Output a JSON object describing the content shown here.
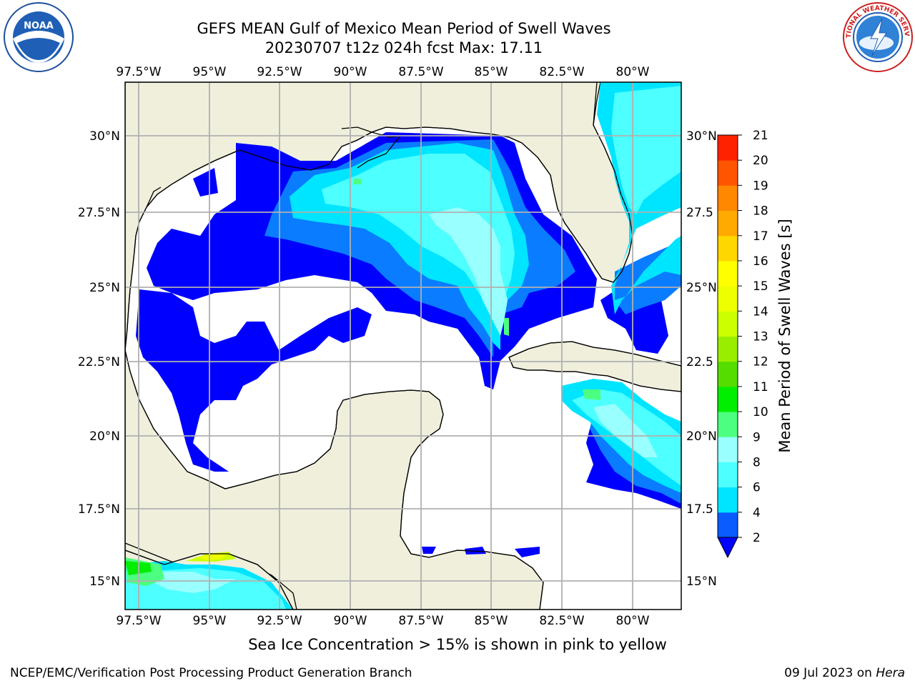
{
  "header": {
    "title_line1": "GEFS MEAN Gulf of Mexico Mean Period of Swell Waves",
    "title_line2": "20230707 t12z 024h fcst   Max: 17.11"
  },
  "logos": {
    "left": "noaa-logo",
    "right": "national-weather-service-logo"
  },
  "map": {
    "lon_labels": [
      "97.5°W",
      "95°W",
      "92.5°W",
      "90°W",
      "87.5°W",
      "85°W",
      "82.5°W",
      "80°W"
    ],
    "lat_labels_left": [
      "30°N",
      "27.5°N",
      "25°N",
      "22.5°N",
      "20°N",
      "17.5°N",
      "15°N"
    ],
    "lat_labels_right": [
      "30°N",
      "27.5",
      "25°N",
      "22.5",
      "20°N",
      "17.5",
      "15°N"
    ],
    "colors": {
      "land": "#efefdc",
      "ocean_blank": "#ffffff",
      "gridline": "#b0b0b0",
      "coast": "#000000"
    }
  },
  "colorbar": {
    "title": "Mean Period of Swell Waves [s]",
    "tick_labels": [
      "2",
      "4",
      "6",
      "8",
      "9",
      "10",
      "11",
      "12",
      "13",
      "14",
      "15",
      "16",
      "17",
      "18",
      "19",
      "20",
      "21"
    ],
    "colors": [
      "#0a5cff",
      "#00e5ff",
      "#4dffff",
      "#99ffff",
      "#4dff80",
      "#00ee00",
      "#55dd00",
      "#99ee00",
      "#ccff00",
      "#eeff00",
      "#ffff00",
      "#ffd700",
      "#ffaa00",
      "#ff8800",
      "#ff5500",
      "#ff2200"
    ],
    "extend_color": "#0000ff"
  },
  "footnote": "Sea Ice Concentration > 15% is shown in pink to yellow",
  "credit": "NCEP/EMC/Verification Post Processing Product Generation Branch",
  "date": {
    "text": "09 Jul 2023 on",
    "machine": "Hera"
  }
}
